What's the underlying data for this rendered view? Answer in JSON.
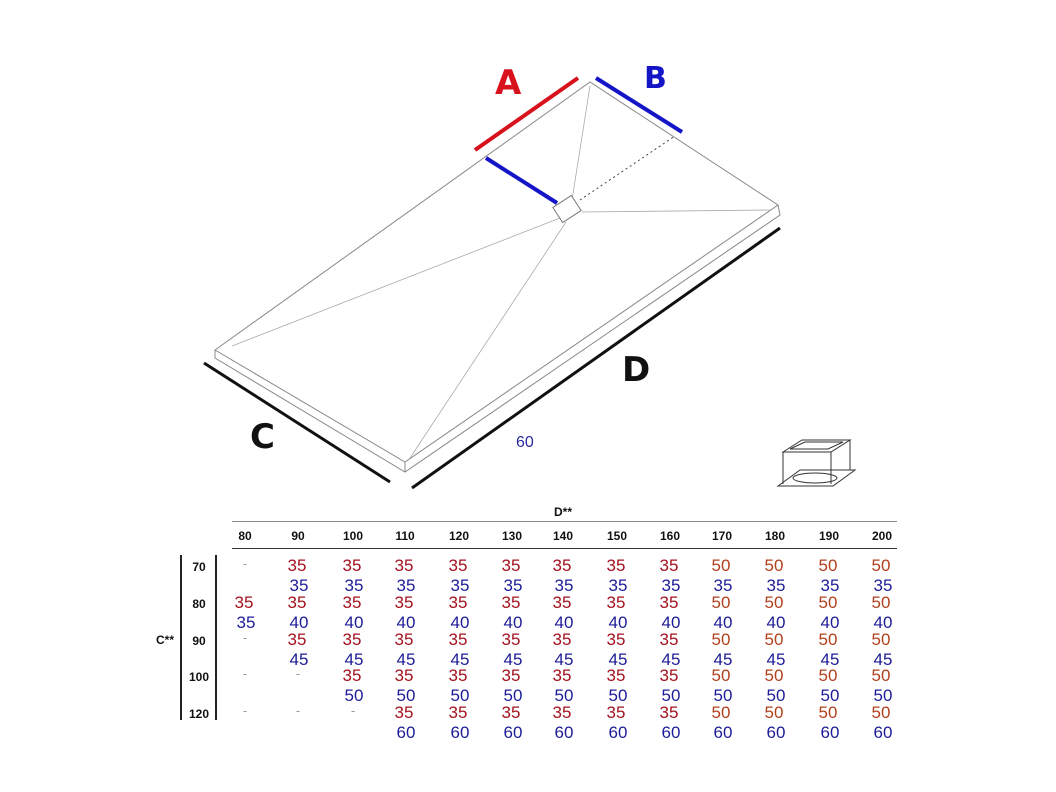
{
  "diagram": {
    "labels": {
      "A": "A",
      "B": "B",
      "C": "C",
      "D": "D",
      "note_60": "60"
    },
    "colors": {
      "A": "#d8121c",
      "B": "#1515c8",
      "C": "#111111",
      "D": "#111111"
    },
    "drain_icon": "drain-grate-icon"
  },
  "table": {
    "column_group_label": "D**",
    "row_group_label": "C**",
    "columns": [
      "80",
      "90",
      "100",
      "110",
      "120",
      "130",
      "140",
      "150",
      "160",
      "170",
      "180",
      "190",
      "200"
    ],
    "rows": [
      {
        "label": "70",
        "cells": [
          "-",
          [
            "35",
            "35"
          ],
          [
            "35",
            "35"
          ],
          [
            "35",
            "35"
          ],
          [
            "35",
            "35"
          ],
          [
            "35",
            "35"
          ],
          [
            "35",
            "35"
          ],
          [
            "35",
            "35"
          ],
          [
            "35",
            "35"
          ],
          [
            "50",
            "35"
          ],
          [
            "50",
            "35"
          ],
          [
            "50",
            "35"
          ],
          [
            "50",
            "35"
          ]
        ]
      },
      {
        "label": "80",
        "cells": [
          [
            "35",
            "35"
          ],
          [
            "35",
            "40"
          ],
          [
            "35",
            "40"
          ],
          [
            "35",
            "40"
          ],
          [
            "35",
            "40"
          ],
          [
            "35",
            "40"
          ],
          [
            "35",
            "40"
          ],
          [
            "35",
            "40"
          ],
          [
            "35",
            "40"
          ],
          [
            "50",
            "40"
          ],
          [
            "50",
            "40"
          ],
          [
            "50",
            "40"
          ],
          [
            "50",
            "40"
          ]
        ]
      },
      {
        "label": "90",
        "cells": [
          "-",
          [
            "35",
            "45"
          ],
          [
            "35",
            "45"
          ],
          [
            "35",
            "45"
          ],
          [
            "35",
            "45"
          ],
          [
            "35",
            "45"
          ],
          [
            "35",
            "45"
          ],
          [
            "35",
            "45"
          ],
          [
            "35",
            "45"
          ],
          [
            "50",
            "45"
          ],
          [
            "50",
            "45"
          ],
          [
            "50",
            "45"
          ],
          [
            "50",
            "45"
          ]
        ]
      },
      {
        "label": "100",
        "cells": [
          "-",
          "-",
          [
            "35",
            "50"
          ],
          [
            "35",
            "50"
          ],
          [
            "35",
            "50"
          ],
          [
            "35",
            "50"
          ],
          [
            "35",
            "50"
          ],
          [
            "35",
            "50"
          ],
          [
            "35",
            "50"
          ],
          [
            "50",
            "50"
          ],
          [
            "50",
            "50"
          ],
          [
            "50",
            "50"
          ],
          [
            "50",
            "50"
          ]
        ]
      },
      {
        "label": "120",
        "cells": [
          "-",
          "-",
          "-",
          [
            "35",
            "60"
          ],
          [
            "35",
            "60"
          ],
          [
            "35",
            "60"
          ],
          [
            "35",
            "60"
          ],
          [
            "35",
            "60"
          ],
          [
            "35",
            "60"
          ],
          [
            "50",
            "60"
          ],
          [
            "50",
            "60"
          ],
          [
            "50",
            "60"
          ],
          [
            "50",
            "60"
          ]
        ]
      }
    ],
    "colors": {
      "A_35": "#a3121e",
      "A_50": "#b2401c",
      "B": "#1c1c98"
    }
  }
}
